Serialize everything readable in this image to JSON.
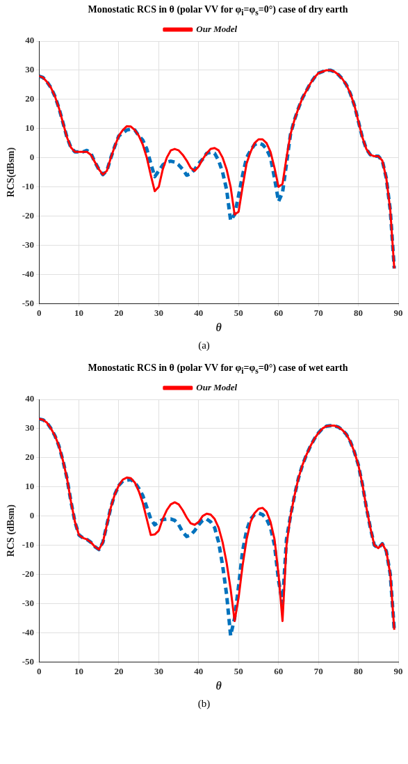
{
  "chart_data": [
    {
      "type": "line",
      "title": "Monostatic RCS in θ (polar VV for φ$_{i}$=φ$_{s}$=0°) case of dry earth",
      "xlabel": "θ",
      "ylabel": "RCS(dBsm)",
      "xlim": [
        0,
        90
      ],
      "xticks": [
        0,
        10,
        20,
        30,
        40,
        50,
        60,
        70,
        80,
        90
      ],
      "ylim": [
        -50,
        40
      ],
      "yticks": [
        -50,
        -40,
        -30,
        -20,
        -10,
        0,
        10,
        20,
        30,
        40
      ],
      "grid": true,
      "legend": "top",
      "marker": "none",
      "annotations": [
        "(a)"
      ],
      "x": [
        0,
        1,
        2,
        3,
        4,
        5,
        6,
        7,
        8,
        9,
        10,
        11,
        12,
        13,
        14,
        15,
        16,
        17,
        18,
        19,
        20,
        21,
        22,
        23,
        24,
        25,
        26,
        27,
        28,
        29,
        30,
        31,
        32,
        33,
        34,
        35,
        36,
        37,
        38,
        39,
        40,
        41,
        42,
        43,
        44,
        45,
        46,
        47,
        48,
        49,
        50,
        51,
        52,
        53,
        54,
        55,
        56,
        57,
        58,
        59,
        60,
        61,
        62,
        63,
        64,
        65,
        66,
        67,
        68,
        69,
        70,
        71,
        72,
        73,
        74,
        75,
        76,
        77,
        78,
        79,
        80,
        81,
        82,
        83,
        84,
        85,
        86,
        87,
        88,
        89
      ],
      "series": [
        {
          "color": "#0072bd",
          "line_style": "dashed",
          "values": [
            28,
            27.5,
            26,
            24,
            21,
            17,
            12,
            7,
            3.5,
            2,
            2,
            2,
            2.5,
            1.5,
            -1.5,
            -4,
            -5.8,
            -4.5,
            0,
            4,
            7.5,
            8.5,
            9.5,
            9.8,
            9.5,
            7.5,
            6,
            3,
            -2,
            -6.5,
            -4.5,
            -2.5,
            -1.5,
            -1.2,
            -1.5,
            -2.5,
            -4,
            -6,
            -5.5,
            -4,
            -2,
            -0.5,
            1.5,
            1.8,
            1.5,
            -1,
            -5,
            -11,
            -21.5,
            -19.5,
            -13,
            -6,
            0,
            2.5,
            4.5,
            5,
            4.5,
            3,
            0,
            -7,
            -15,
            -12,
            -2,
            8,
            13,
            17,
            20.5,
            23,
            25.5,
            27.5,
            29,
            29.5,
            30,
            30,
            29.5,
            28.5,
            27,
            25,
            22,
            18,
            12.5,
            7,
            3,
            1,
            0.5,
            0.5,
            -1,
            -7,
            -18,
            -38
          ]
        },
        {
          "name": "Our Model",
          "color": "#ff0000",
          "line_style": "solid",
          "values": [
            28,
            27.5,
            26,
            24,
            21,
            17,
            12,
            7,
            3.5,
            2,
            2,
            2,
            2,
            1,
            -1.5,
            -4,
            -5.8,
            -4.5,
            0,
            4,
            7.5,
            9.5,
            10.8,
            10.7,
            9.5,
            7.5,
            4.5,
            0,
            -6,
            -11.5,
            -10,
            -4,
            0,
            2.5,
            3,
            2.5,
            1,
            -1,
            -3.5,
            -4.5,
            -3,
            -0.5,
            1.5,
            3,
            3.3,
            2.5,
            0,
            -4,
            -10,
            -19.5,
            -18.5,
            -10,
            -2,
            2,
            5,
            6.3,
            6.3,
            5,
            2,
            -3.5,
            -10,
            -9,
            0,
            8,
            13,
            17,
            20.5,
            23,
            25.5,
            27.5,
            29,
            29.5,
            30,
            30,
            29.5,
            28.5,
            27,
            25,
            22,
            18,
            12.5,
            7,
            3,
            1,
            0.5,
            0.5,
            -1,
            -7,
            -18,
            -38
          ]
        }
      ]
    },
    {
      "type": "line",
      "title": "Monostatic RCS in θ (polar VV for φ$_{i}$=φ$_{s}$=0°) case of wet earth",
      "xlabel": "θ",
      "ylabel": "RCS (dBsm)",
      "xlim": [
        0,
        90
      ],
      "xticks": [
        0,
        10,
        20,
        30,
        40,
        50,
        60,
        70,
        80,
        90
      ],
      "ylim": [
        -50,
        40
      ],
      "yticks": [
        -50,
        -40,
        -30,
        -20,
        -10,
        0,
        10,
        20,
        30,
        40
      ],
      "grid": true,
      "legend": "top",
      "marker": "none",
      "annotations": [
        "(b)"
      ],
      "x": [
        0,
        1,
        2,
        3,
        4,
        5,
        6,
        7,
        8,
        9,
        10,
        11,
        12,
        13,
        14,
        15,
        16,
        17,
        18,
        19,
        20,
        21,
        22,
        23,
        24,
        25,
        26,
        27,
        28,
        29,
        30,
        31,
        32,
        33,
        34,
        35,
        36,
        37,
        38,
        39,
        40,
        41,
        42,
        43,
        44,
        45,
        46,
        47,
        48,
        49,
        50,
        51,
        52,
        53,
        54,
        55,
        56,
        57,
        58,
        59,
        60,
        61,
        62,
        63,
        64,
        65,
        66,
        67,
        68,
        69,
        70,
        71,
        72,
        73,
        74,
        75,
        76,
        77,
        78,
        79,
        80,
        81,
        82,
        83,
        84,
        85,
        86,
        87,
        88,
        89
      ],
      "series": [
        {
          "color": "#0072bd",
          "line_style": "dashed",
          "values": [
            33.3,
            33,
            32,
            30,
            27.5,
            24,
            19,
            13,
            5,
            -2,
            -6.5,
            -7.5,
            -8,
            -9,
            -10.5,
            -11.5,
            -9,
            -3,
            3,
            7.5,
            10.5,
            12,
            12.3,
            12.5,
            11.5,
            9.5,
            7,
            3,
            -1,
            -3,
            -2,
            -1.2,
            -1,
            -1,
            -1.5,
            -3,
            -5.5,
            -7,
            -6.5,
            -5,
            -3,
            -1.5,
            -1,
            -2,
            -4,
            -9,
            -17,
            -27,
            -41,
            -35,
            -24,
            -12,
            -5,
            -1,
            0.5,
            1,
            0.5,
            -1,
            -4,
            -10,
            -22,
            -30,
            -8,
            0,
            7,
            13,
            17.5,
            21,
            24,
            26.5,
            28.5,
            30,
            30.8,
            31,
            31,
            30.5,
            29.5,
            28,
            25.5,
            22,
            17.5,
            11,
            3,
            -4,
            -10,
            -11,
            -9.5,
            -12,
            -20,
            -39
          ]
        },
        {
          "name": "Our Model",
          "color": "#ff0000",
          "line_style": "solid",
          "values": [
            33.3,
            33,
            32,
            30,
            27.5,
            24,
            19,
            13,
            5,
            -2,
            -6.5,
            -7.5,
            -8,
            -9,
            -10.5,
            -11.5,
            -9,
            -3,
            3,
            7.5,
            10.5,
            12.5,
            13.2,
            13,
            11.5,
            8.5,
            4.5,
            -1,
            -6.5,
            -6.3,
            -5,
            -1,
            2,
            4,
            4.7,
            4,
            2,
            -0.5,
            -2.5,
            -3,
            -2,
            0,
            0.8,
            0.5,
            -1,
            -4,
            -9,
            -16,
            -25,
            -36,
            -28,
            -17,
            -8,
            -2,
            1,
            2.5,
            2.8,
            1.5,
            -2,
            -8,
            -20,
            -36,
            -10,
            0,
            7,
            13,
            17.5,
            21,
            24,
            26.5,
            28.5,
            30,
            30.8,
            31,
            31,
            30.5,
            29.5,
            28,
            25.5,
            22,
            17.5,
            11,
            3,
            -4,
            -10,
            -11,
            -9.5,
            -12,
            -20,
            -39
          ]
        }
      ]
    }
  ]
}
